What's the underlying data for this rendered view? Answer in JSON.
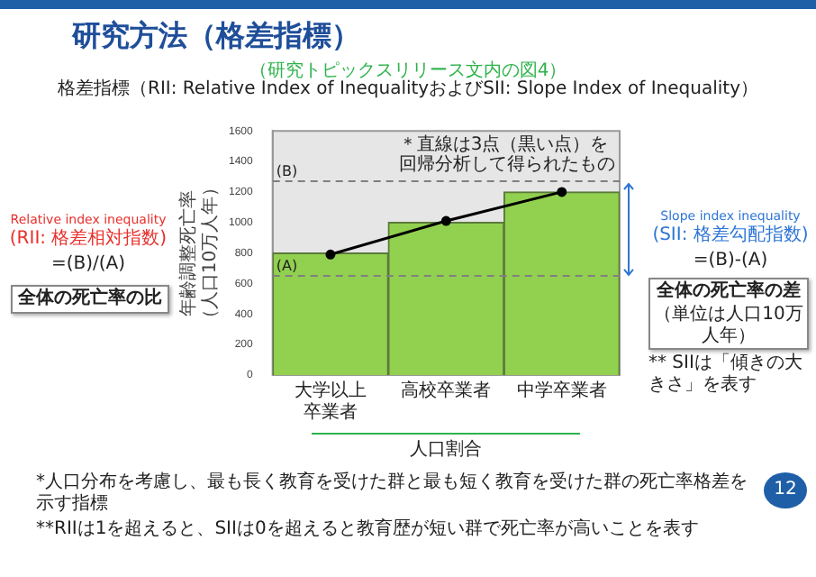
{
  "chart_data": {
    "type": "bar",
    "title": "研究方法（格差指標）",
    "subtitle": "（研究トピックスリリース文内の図4）",
    "ylabel": "年齢調整死亡率（人口10万人年）",
    "xlabel": "人口割合",
    "categories": [
      "大学以上卒業者",
      "高校卒業者",
      "中学卒業者"
    ],
    "series": [
      {
        "color": "#92d050",
        "values": [
          800,
          1000,
          1200
        ]
      },
      {
        "type": "line",
        "color": "#000000",
        "values": [
          790,
          1010,
          1200
        ]
      }
    ],
    "marker": "circle",
    "line_style": "solid",
    "ylim": [
      0,
      1600
    ],
    "yticks": [
      0,
      200,
      400,
      600,
      800,
      1000,
      1200,
      1400,
      1600
    ],
    "grid": false,
    "legend": false,
    "ref_lines": [
      {
        "axis": "y",
        "value": 650,
        "label": "(A)",
        "color": "#808080",
        "line_style": "dashed"
      },
      {
        "axis": "y",
        "value": 1270,
        "label": "(B)",
        "color": "#808080",
        "line_style": "dashed"
      }
    ],
    "annotations": [
      "格差指標（RII: Relative Index of InequalityおよびSII: Slope Index of Inequality）",
      "＊直線は3点（黒い点）を回帰分析して得られたもの",
      "Relative index inequality",
      "(RII: 格差相対指数)",
      "=(B)/(A)",
      "全体の死亡率の比",
      "Slope index inequality",
      "(SII: 格差勾配指数)",
      "=(B)-(A)",
      "全体の死亡率の差",
      "（単位は人口10万人年）",
      "** SIIは「傾きの大きさ」を表す",
      "*人口分布を考慮し、最も長く教育を受けた群と最も短く教育を受けた群の死亡率格差を示す指標",
      "**RIIは1を超えると、SIIは0を超えると教育歴が短い群で死亡率が高いことを表す",
      "12"
    ]
  }
}
